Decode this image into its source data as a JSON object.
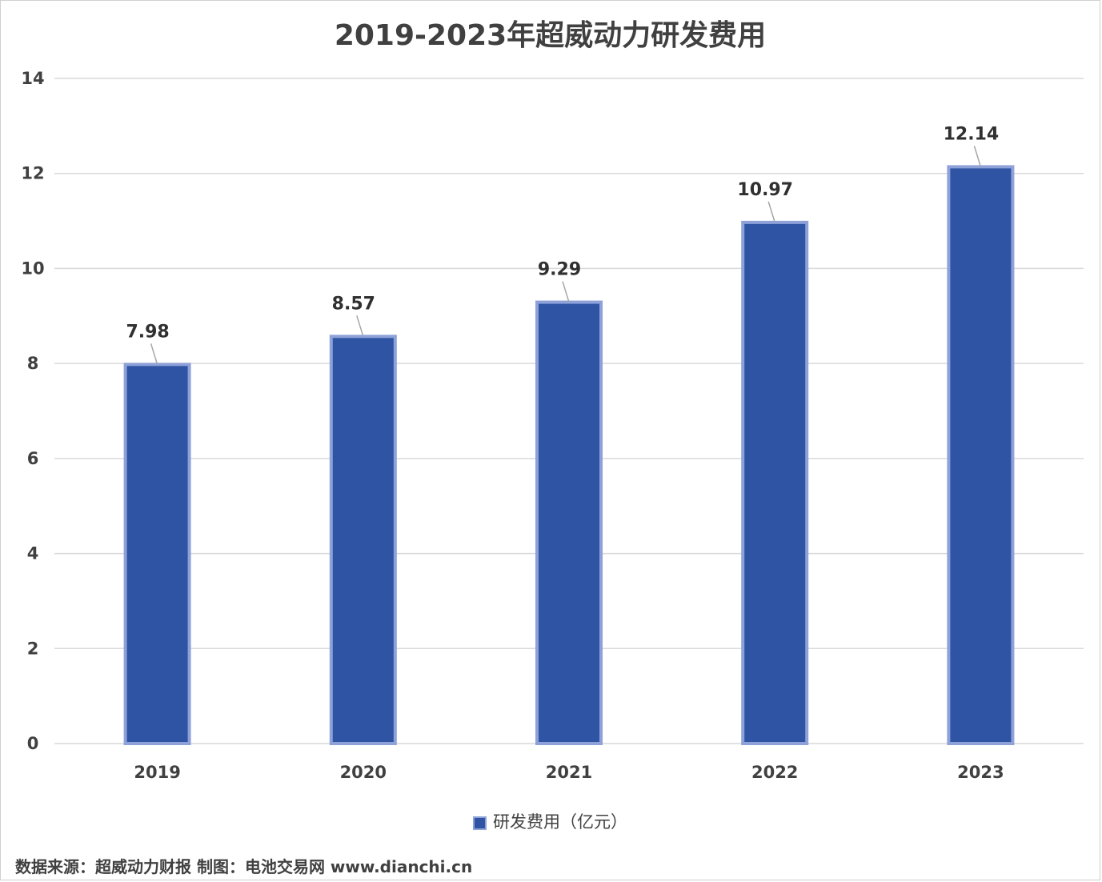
{
  "chart_data": {
    "type": "bar",
    "title": "2019-2023年超威动力研发费用",
    "categories": [
      "2019",
      "2020",
      "2021",
      "2022",
      "2023"
    ],
    "series": [
      {
        "name": "研发费用（亿元）",
        "values": [
          7.98,
          8.57,
          9.29,
          10.97,
          12.14
        ]
      }
    ],
    "data_labels": [
      "7.98",
      "8.57",
      "9.29",
      "10.97",
      "12.14"
    ],
    "y_ticks": [
      "0",
      "2",
      "4",
      "6",
      "8",
      "10",
      "12",
      "14"
    ],
    "ylim": [
      0,
      14
    ],
    "grid": true,
    "legend_position": "bottom",
    "colors": {
      "bar_fill": "#2f54a4",
      "bar_outline": "#8ea1d8",
      "grid": "#d9d9d9",
      "text": "#404040"
    }
  },
  "footer": {
    "source_text": "数据来源：超威动力财报  制图：电池交易网 www.dianchi.cn"
  }
}
